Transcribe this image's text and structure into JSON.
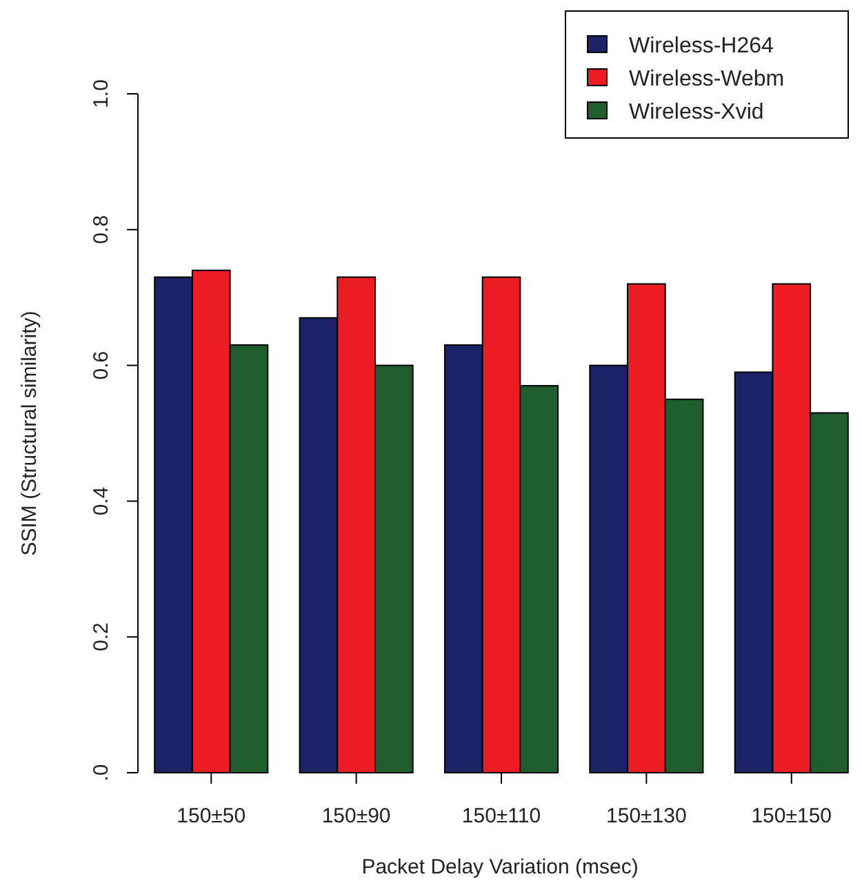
{
  "chart_data": {
    "type": "bar",
    "xlabel": "Packet Delay Variation (msec)",
    "ylabel": "SSIM (Structural similarity)",
    "categories": [
      "150±50",
      "150±90",
      "150±110",
      "150±130",
      "150±150"
    ],
    "series": [
      {
        "name": "Wireless-H264",
        "color": "#1b2266",
        "values": [
          0.73,
          0.67,
          0.63,
          0.6,
          0.59
        ]
      },
      {
        "name": "Wireless-Webm",
        "color": "#ec1c24",
        "values": [
          0.74,
          0.73,
          0.73,
          0.72,
          0.72
        ]
      },
      {
        "name": "Wireless-Xvid",
        "color": "#1f5c2e",
        "values": [
          0.63,
          0.6,
          0.57,
          0.55,
          0.53
        ]
      }
    ],
    "ylim": [
      0,
      1
    ],
    "yticks": [
      {
        "value": 0,
        "label": ".0"
      },
      0.2,
      0.4,
      0.6,
      0.8,
      {
        "value": 1,
        "label": "1.0"
      }
    ],
    "legend": "top right",
    "grid": false
  }
}
